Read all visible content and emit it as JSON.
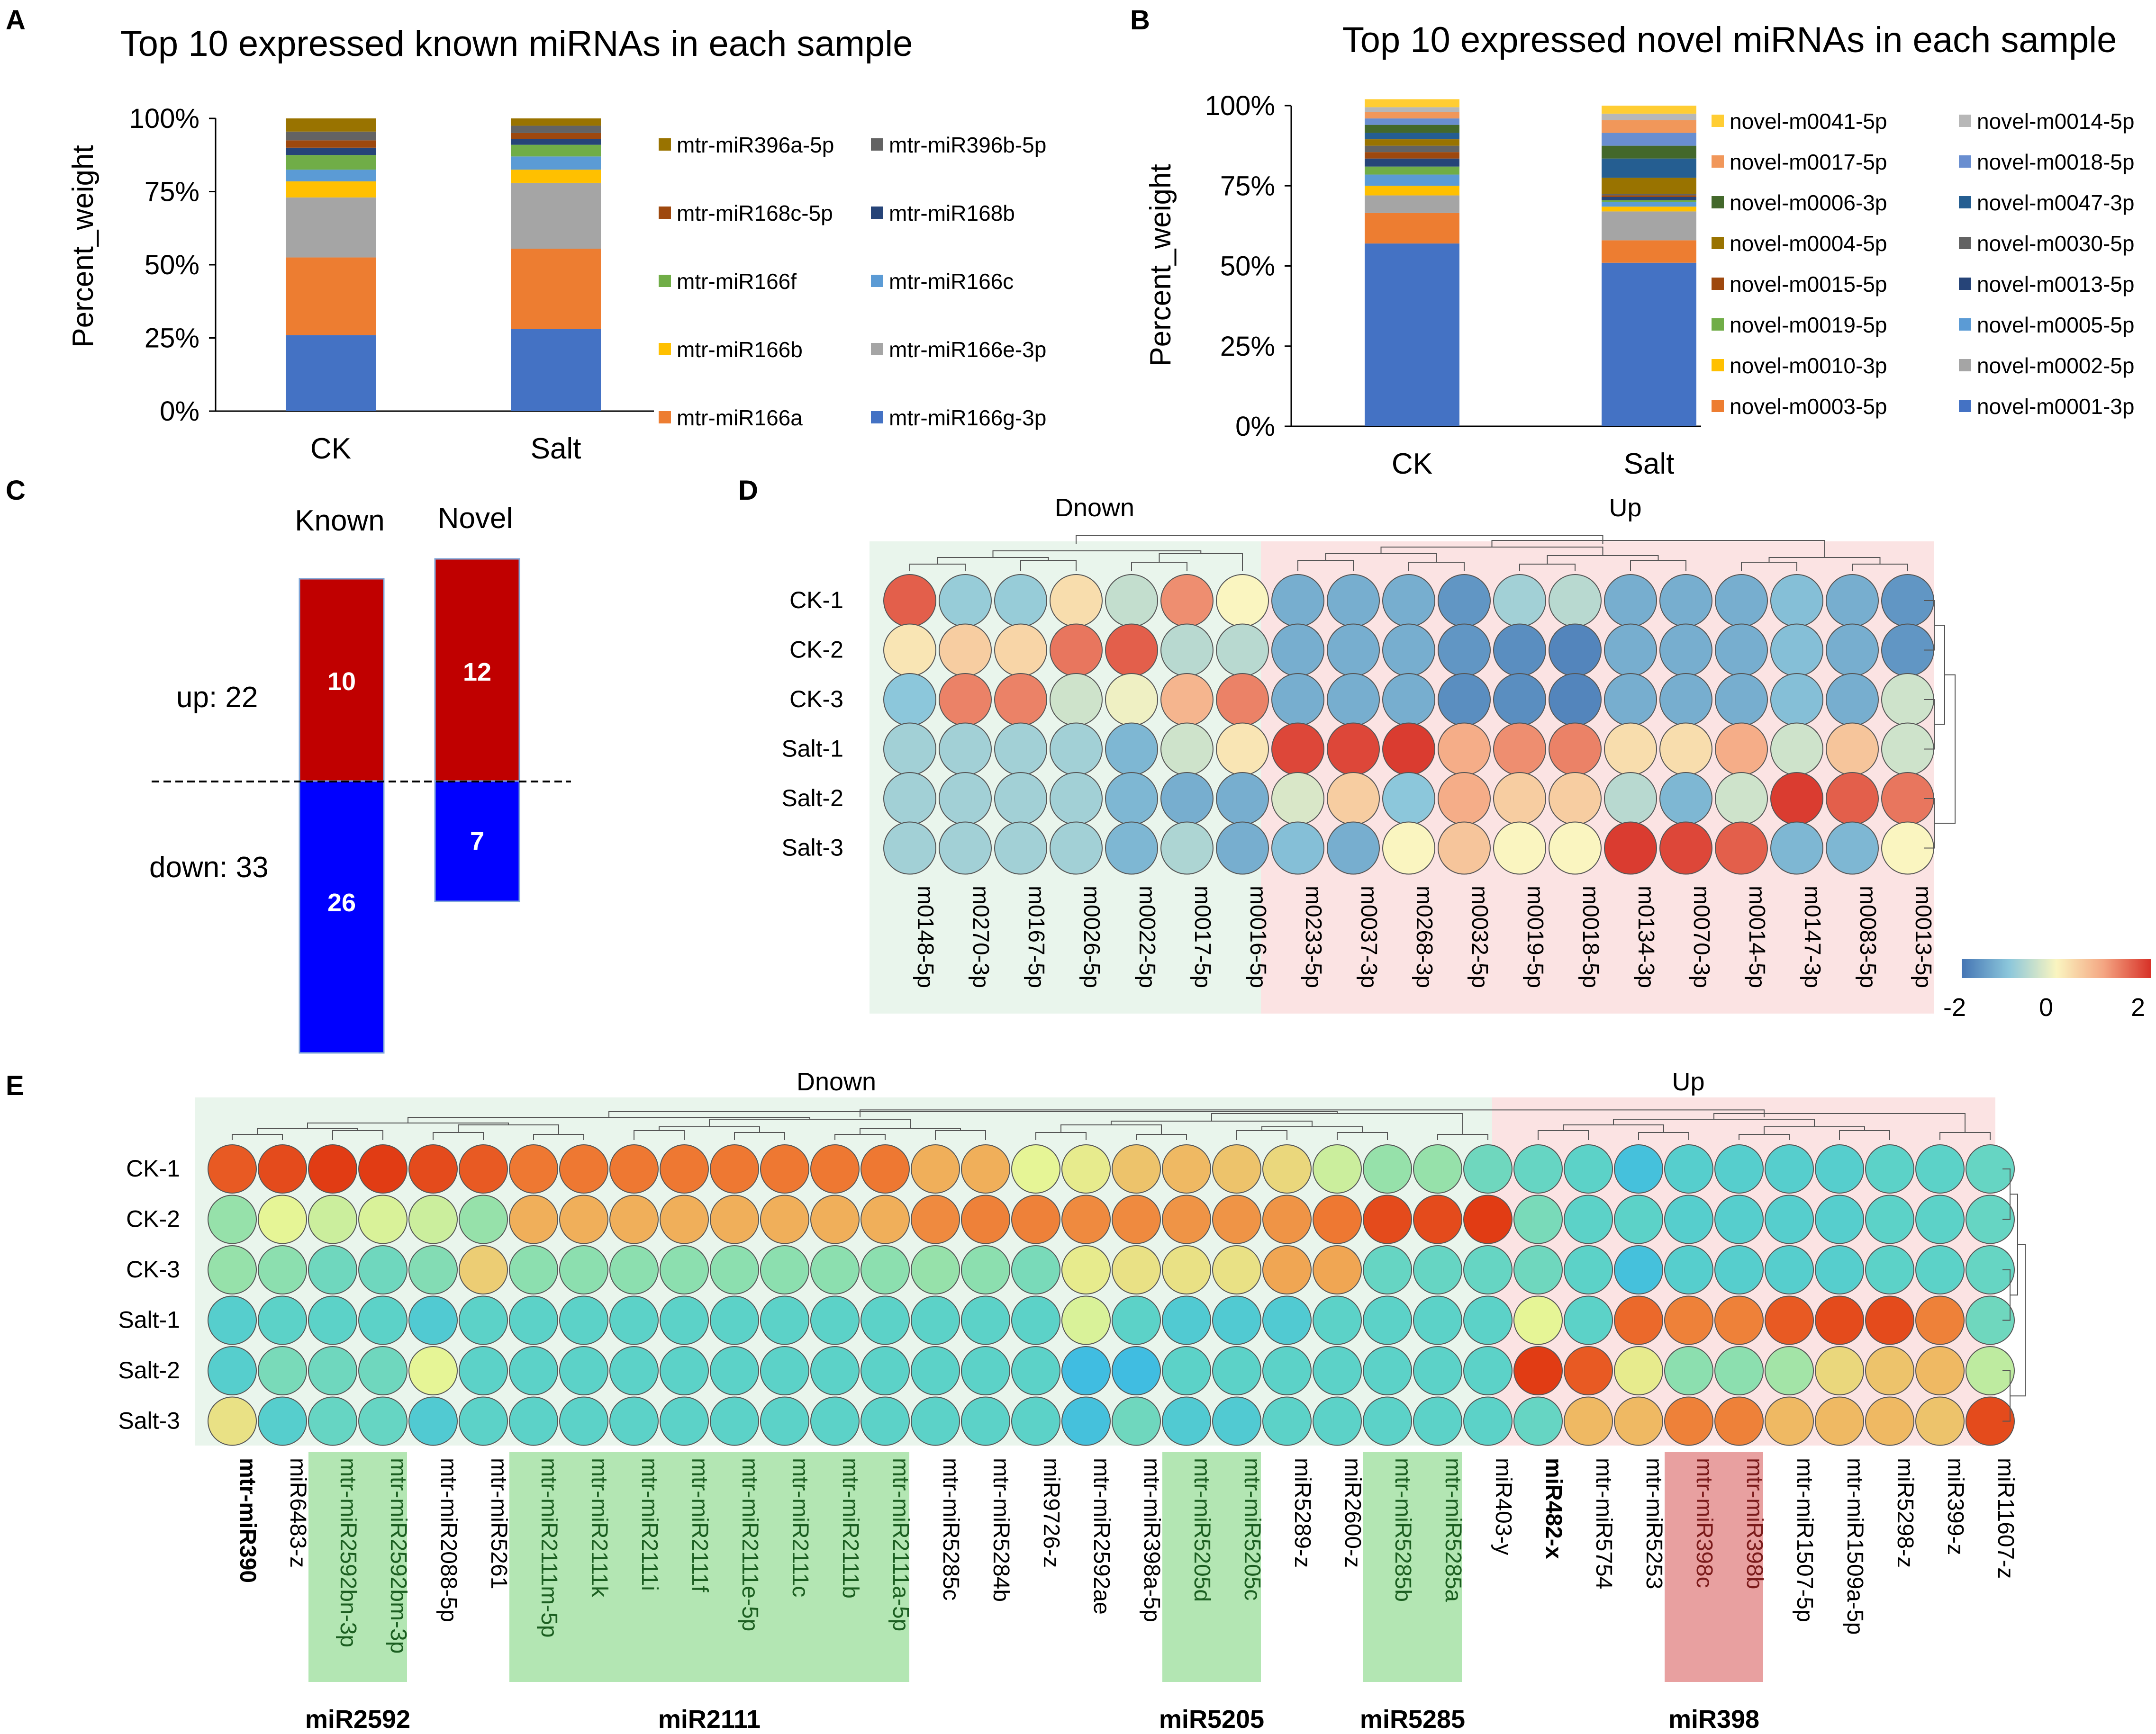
{
  "panels": {
    "A": "A",
    "B": "B",
    "C": "C",
    "D": "D",
    "E": "E"
  },
  "chart_data": [
    {
      "id": "A",
      "type": "bar",
      "stacked": true,
      "title": "Top 10 expressed known miRNAs in each sample",
      "xlabel": "",
      "ylabel": "Percent_weight",
      "yticks": [
        "0%",
        "25%",
        "50%",
        "75%",
        "100%"
      ],
      "ylim": [
        0,
        100
      ],
      "categories": [
        "CK",
        "Salt"
      ],
      "series": [
        {
          "name": "mtr-miR166g-3p",
          "color": "#4472C4",
          "values": [
            26,
            28
          ]
        },
        {
          "name": "mtr-miR166a",
          "color": "#ED7D31",
          "values": [
            26.5,
            27.5
          ]
        },
        {
          "name": "mtr-miR166e-3p",
          "color": "#A5A5A5",
          "values": [
            20.5,
            22.5
          ]
        },
        {
          "name": "mtr-miR166b",
          "color": "#FFC000",
          "values": [
            5.5,
            4.5
          ]
        },
        {
          "name": "mtr-miR166c",
          "color": "#5B9BD5",
          "values": [
            4,
            4.5
          ]
        },
        {
          "name": "mtr-miR166f",
          "color": "#70AD47",
          "values": [
            5,
            4
          ]
        },
        {
          "name": "mtr-miR168b",
          "color": "#264478",
          "values": [
            2.5,
            2
          ]
        },
        {
          "name": "mtr-miR168c-5p",
          "color": "#9E480E",
          "values": [
            2.5,
            2
          ]
        },
        {
          "name": "mtr-miR396b-5p",
          "color": "#636363",
          "values": [
            3,
            2.5
          ]
        },
        {
          "name": "mtr-miR396a-5p",
          "color": "#997300",
          "values": [
            4.5,
            2.5
          ]
        }
      ]
    },
    {
      "id": "B",
      "type": "bar",
      "stacked": true,
      "title": "Top 10 expressed novel miRNAs in each sample",
      "xlabel": "",
      "ylabel": "Percent_weight",
      "yticks": [
        "0%",
        "25%",
        "50%",
        "75%",
        "100%"
      ],
      "ylim": [
        0,
        100
      ],
      "categories": [
        "CK",
        "Salt"
      ],
      "series": [
        {
          "name": "novel-m0001-3p",
          "color": "#4472C4",
          "values": [
            57,
            51
          ]
        },
        {
          "name": "novel-m0003-5p",
          "color": "#ED7D31",
          "values": [
            9.5,
            7
          ]
        },
        {
          "name": "novel-m0002-5p",
          "color": "#A5A5A5",
          "values": [
            5.5,
            9
          ]
        },
        {
          "name": "novel-m0010-3p",
          "color": "#FFC000",
          "values": [
            3,
            1.5
          ]
        },
        {
          "name": "novel-m0005-5p",
          "color": "#5B9BD5",
          "values": [
            3.5,
            1.5
          ]
        },
        {
          "name": "novel-m0019-5p",
          "color": "#70AD47",
          "values": [
            2.5,
            0.5
          ]
        },
        {
          "name": "novel-m0013-5p",
          "color": "#264478",
          "values": [
            2.5,
            1
          ]
        },
        {
          "name": "novel-m0015-5p",
          "color": "#9E480E",
          "values": [
            2,
            0.5
          ]
        },
        {
          "name": "novel-m0030-5p",
          "color": "#636363",
          "values": [
            2,
            0.5
          ]
        },
        {
          "name": "novel-m0004-5p",
          "color": "#997300",
          "values": [
            2,
            5
          ]
        },
        {
          "name": "novel-m0047-3p",
          "color": "#255E91",
          "values": [
            2,
            6
          ]
        },
        {
          "name": "novel-m0006-3p",
          "color": "#43682B",
          "values": [
            2.5,
            4
          ]
        },
        {
          "name": "novel-m0018-5p",
          "color": "#698ED0",
          "values": [
            2,
            4
          ]
        },
        {
          "name": "novel-m0017-5p",
          "color": "#F1975A",
          "values": [
            2,
            4
          ]
        },
        {
          "name": "novel-m0014-5p",
          "color": "#B7B7B7",
          "values": [
            1.5,
            2
          ]
        },
        {
          "name": "novel-m0041-5p",
          "color": "#FFCD33",
          "values": [
            2.5,
            2.5
          ]
        }
      ]
    },
    {
      "id": "C",
      "type": "bar",
      "title": "",
      "categories": [
        "Known",
        "Novel"
      ],
      "series": [
        {
          "name": "up",
          "color": "#C00000",
          "values": [
            10,
            12
          ]
        },
        {
          "name": "down",
          "color": "#0000FF",
          "values": [
            26,
            7
          ]
        }
      ],
      "up_label": "up: 22",
      "down_label": "down: 33",
      "value_labels": {
        "known_up": "10",
        "novel_up": "12",
        "known_down": "26",
        "novel_down": "7"
      }
    },
    {
      "id": "D",
      "type": "heatmap",
      "groups": {
        "left": "Dnown",
        "right": "Up"
      },
      "rows": [
        "CK-1",
        "CK-2",
        "CK-3",
        "Salt-1",
        "Salt-2",
        "Salt-3"
      ],
      "cols": [
        "m0148-5p",
        "m0270-3p",
        "m0167-5p",
        "m0026-5p",
        "m0022-5p",
        "m0017-5p",
        "m0016-5p",
        "m0233-5p",
        "m0037-3p",
        "m0268-3p",
        "m0032-5p",
        "m0019-5p",
        "m0018-5p",
        "m0134-3p",
        "m0070-3p",
        "m0014-5p",
        "m0147-3p",
        "m0083-5p",
        "m0013-5p"
      ],
      "split_index": 7,
      "scale": {
        "min_label": "-2",
        "mid_label": "0",
        "max_label": "2",
        "min": -2,
        "max": 2
      },
      "values": [
        [
          1.6,
          -0.9,
          -0.9,
          0.3,
          -0.5,
          1.2,
          0.0,
          -1.3,
          -1.3,
          -1.3,
          -1.6,
          -0.8,
          -0.6,
          -1.3,
          -1.3,
          -1.3,
          -1.1,
          -1.3,
          -1.6
        ],
        [
          0.2,
          0.5,
          0.4,
          1.4,
          1.6,
          -0.6,
          -0.6,
          -1.3,
          -1.3,
          -1.3,
          -1.6,
          -1.7,
          -1.8,
          -1.3,
          -1.3,
          -1.3,
          -1.1,
          -1.3,
          -1.6
        ],
        [
          -1.0,
          1.3,
          1.3,
          -0.4,
          -0.1,
          0.8,
          1.3,
          -1.3,
          -1.3,
          -1.3,
          -1.7,
          -1.7,
          -1.8,
          -1.3,
          -1.3,
          -1.3,
          -1.1,
          -1.3,
          -0.4
        ],
        [
          -0.8,
          -0.8,
          -0.8,
          -0.8,
          -1.2,
          -0.4,
          0.2,
          1.8,
          1.8,
          1.9,
          0.9,
          1.2,
          1.3,
          0.3,
          0.3,
          0.9,
          -0.4,
          0.6,
          -0.4
        ],
        [
          -0.8,
          -0.8,
          -0.8,
          -0.8,
          -1.2,
          -1.3,
          -1.3,
          -0.3,
          0.5,
          -1.0,
          0.9,
          0.5,
          0.5,
          -0.6,
          -1.2,
          -0.4,
          1.9,
          1.6,
          1.4
        ],
        [
          -0.8,
          -0.8,
          -0.8,
          -0.8,
          -1.2,
          -0.7,
          -1.3,
          -1.1,
          -1.3,
          0.0,
          0.6,
          0.0,
          0.0,
          1.9,
          1.8,
          1.6,
          -1.2,
          -1.2,
          0.0
        ]
      ]
    },
    {
      "id": "E",
      "type": "heatmap",
      "groups": {
        "left": "Dnown",
        "right": "Up"
      },
      "rows": [
        "CK-1",
        "CK-2",
        "CK-3",
        "Salt-1",
        "Salt-2",
        "Salt-3"
      ],
      "cols": [
        "mtr-miR390",
        "miR6483-z",
        "mtr-miR2592bn-3p",
        "mtr-miR2592bm-3p",
        "mtr-miR2088-5p",
        "mtr-miR5261",
        "mtr-miR2111m-5p",
        "mtr-miR2111k",
        "mtr-miR2111i",
        "mtr-miR2111f",
        "mtr-miR2111e-5p",
        "mtr-miR2111c",
        "mtr-miR2111b",
        "mtr-miR2111a-5p",
        "mtr-miR5285c",
        "mtr-miR5284b",
        "miR9726-z",
        "mtr-miR2592ae",
        "mtr-miR398a-5p",
        "mtr-miR5205d",
        "mtr-miR5205c",
        "miR5289-z",
        "miR2600-z",
        "mtr-miR5285b",
        "mtr-miR5285a",
        "miR403-y",
        "miR482-x",
        "mtr-miR5754",
        "mtr-miR5253",
        "mtr-miR398c",
        "mtr-miR398b",
        "mtr-miR1507-5p",
        "mtr-miR1509a-5p",
        "miR5298-z",
        "miR399-z",
        "miR11607-z"
      ],
      "bold_cols": [
        "mtr-miR390",
        "miR482-x"
      ],
      "split_index": 26,
      "highlight_groups": [
        {
          "label": "miR2592",
          "start": 2,
          "end": 3,
          "color": "#B3E6B3"
        },
        {
          "label": "miR2111",
          "start": 6,
          "end": 13,
          "color": "#B3E6B3"
        },
        {
          "label": "miR5205",
          "start": 19,
          "end": 20,
          "color": "#B3E6B3"
        },
        {
          "label": "miR5285",
          "start": 23,
          "end": 24,
          "color": "#B3E6B3"
        },
        {
          "label": "miR398",
          "start": 29,
          "end": 30,
          "color": "#E8A0A0"
        }
      ],
      "values": [
        [
          1.8,
          1.9,
          2.0,
          2.0,
          1.9,
          1.8,
          1.6,
          1.6,
          1.6,
          1.6,
          1.6,
          1.6,
          1.6,
          1.6,
          1.0,
          1.0,
          0.3,
          0.4,
          0.8,
          0.9,
          0.8,
          0.6,
          0.1,
          -0.3,
          -0.3,
          -0.7,
          -0.8,
          -0.9,
          -1.3,
          -1.0,
          -1.0,
          -1.0,
          -1.0,
          -0.9,
          -0.9,
          -0.8
        ],
        [
          -0.3,
          0.3,
          0.1,
          0.2,
          0.1,
          -0.3,
          1.0,
          1.0,
          1.0,
          1.0,
          1.0,
          1.0,
          1.0,
          1.0,
          1.4,
          1.5,
          1.5,
          1.4,
          1.4,
          1.3,
          1.3,
          1.3,
          1.6,
          1.9,
          1.9,
          2.0,
          -0.6,
          -0.9,
          -0.9,
          -1.0,
          -1.0,
          -1.0,
          -1.0,
          -0.9,
          -0.9,
          -0.8
        ],
        [
          -0.3,
          -0.4,
          -0.7,
          -0.7,
          -0.5,
          0.7,
          -0.4,
          -0.4,
          -0.4,
          -0.4,
          -0.4,
          -0.4,
          -0.4,
          -0.4,
          -0.3,
          -0.4,
          -0.6,
          0.4,
          0.5,
          0.5,
          0.5,
          1.1,
          1.1,
          -0.8,
          -0.8,
          -0.8,
          -0.7,
          -0.9,
          -1.3,
          -1.0,
          -1.0,
          -1.0,
          -1.0,
          -0.9,
          -0.9,
          -0.8
        ],
        [
          -1.0,
          -0.9,
          -0.9,
          -0.9,
          -1.1,
          -0.9,
          -0.9,
          -0.9,
          -0.9,
          -0.9,
          -0.9,
          -0.9,
          -0.9,
          -0.9,
          -0.9,
          -0.9,
          -0.9,
          0.2,
          -0.9,
          -1.1,
          -1.1,
          -1.1,
          -0.9,
          -0.9,
          -0.9,
          -0.9,
          0.3,
          -0.9,
          1.7,
          1.5,
          1.5,
          1.8,
          1.9,
          1.9,
          1.5,
          -0.7
        ],
        [
          -1.0,
          -0.6,
          -0.7,
          -0.7,
          0.3,
          -0.9,
          -0.9,
          -0.9,
          -0.9,
          -0.9,
          -0.9,
          -0.9,
          -0.9,
          -0.9,
          -0.9,
          -0.9,
          -0.9,
          -1.4,
          -1.4,
          -0.9,
          -0.9,
          -0.9,
          -0.9,
          -0.9,
          -0.9,
          -0.9,
          2.0,
          1.8,
          0.4,
          -0.4,
          -0.4,
          -0.2,
          0.6,
          0.8,
          0.9,
          0.0
        ],
        [
          0.5,
          -1.0,
          -0.8,
          -0.8,
          -1.1,
          -0.9,
          -0.9,
          -0.9,
          -0.9,
          -0.9,
          -0.9,
          -0.9,
          -0.9,
          -0.9,
          -0.9,
          -0.9,
          -0.9,
          -1.3,
          -0.7,
          -1.1,
          -1.1,
          -0.9,
          -0.9,
          -0.9,
          -0.9,
          -0.9,
          -0.8,
          0.9,
          0.9,
          1.5,
          1.5,
          0.9,
          0.9,
          0.9,
          0.8,
          1.9
        ]
      ]
    }
  ]
}
